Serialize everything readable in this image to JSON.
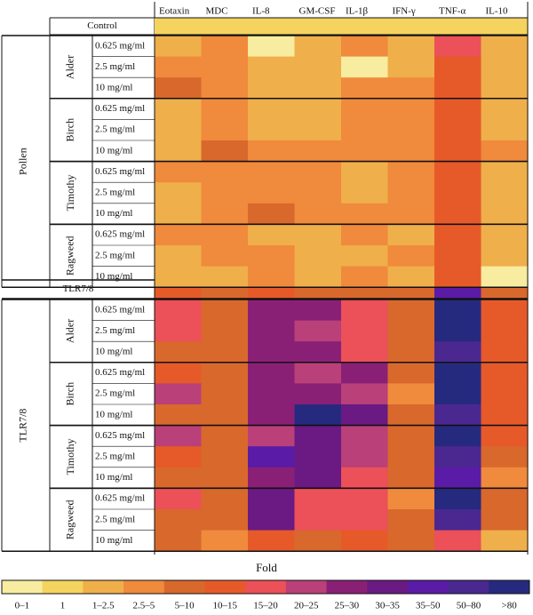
{
  "chart_data": {
    "type": "heatmap",
    "columns": [
      "Eotaxin",
      "MDC",
      "IL-8",
      "GM-CSF",
      "IL-1β",
      "IFN-γ",
      "TNF-α",
      "IL-10"
    ],
    "control_label": "Control",
    "control_values": [
      1,
      1,
      1,
      1,
      1,
      1,
      1,
      1
    ],
    "blocks": [
      {
        "name": "Pollen",
        "groups": [
          {
            "name": "Alder",
            "rows": [
              {
                "label": "0.625 mg/ml",
                "values": [
                  2,
                  3,
                  0,
                  2,
                  3,
                  2,
                  6,
                  2
                ]
              },
              {
                "label": "2.5 mg/ml",
                "values": [
                  3,
                  3,
                  2,
                  2,
                  0,
                  2,
                  5,
                  2
                ]
              },
              {
                "label": "10 mg/ml",
                "values": [
                  4,
                  3,
                  2,
                  2,
                  3,
                  3,
                  5,
                  2
                ]
              }
            ]
          },
          {
            "name": "Birch",
            "rows": [
              {
                "label": "0.625 mg/ml",
                "values": [
                  2,
                  3,
                  2,
                  2,
                  3,
                  3,
                  5,
                  2
                ]
              },
              {
                "label": "2.5 mg/ml",
                "values": [
                  2,
                  3,
                  2,
                  2,
                  3,
                  3,
                  5,
                  2
                ]
              },
              {
                "label": "10 mg/ml",
                "values": [
                  2,
                  4,
                  3,
                  3,
                  3,
                  3,
                  5,
                  3
                ]
              }
            ]
          },
          {
            "name": "Timothy",
            "rows": [
              {
                "label": "0.625 mg/ml",
                "values": [
                  3,
                  3,
                  3,
                  3,
                  2,
                  3,
                  5,
                  2
                ]
              },
              {
                "label": "2.5 mg/ml",
                "values": [
                  2,
                  3,
                  3,
                  3,
                  2,
                  3,
                  5,
                  2
                ]
              },
              {
                "label": "10 mg/ml",
                "values": [
                  2,
                  3,
                  4,
                  3,
                  3,
                  3,
                  5,
                  2
                ]
              }
            ]
          },
          {
            "name": "Ragweed",
            "rows": [
              {
                "label": "0.625 mg/ml",
                "values": [
                  3,
                  3,
                  2,
                  2,
                  3,
                  2,
                  5,
                  2
                ]
              },
              {
                "label": "2.5 mg/ml",
                "values": [
                  2,
                  3,
                  3,
                  2,
                  2,
                  3,
                  5,
                  2
                ]
              },
              {
                "label": "10 mg/ml",
                "values": [
                  2,
                  2,
                  3,
                  2,
                  3,
                  2,
                  5,
                  0
                ]
              }
            ]
          }
        ]
      },
      {
        "name": "TLR7/8",
        "groups": [
          {
            "name": "Alder",
            "rows": [
              {
                "label": "0.625 mg/ml",
                "values": [
                  6,
                  4,
                  8,
                  8,
                  6,
                  4,
                  12,
                  5
                ]
              },
              {
                "label": "2.5 mg/ml",
                "values": [
                  6,
                  4,
                  8,
                  7,
                  6,
                  4,
                  12,
                  5
                ]
              },
              {
                "label": "10 mg/ml",
                "values": [
                  4,
                  4,
                  8,
                  8,
                  6,
                  4,
                  11,
                  5
                ]
              }
            ]
          },
          {
            "name": "Birch",
            "rows": [
              {
                "label": "0.625 mg/ml",
                "values": [
                  5,
                  4,
                  8,
                  7,
                  8,
                  4,
                  12,
                  5
                ]
              },
              {
                "label": "2.5 mg/ml",
                "values": [
                  7,
                  4,
                  8,
                  8,
                  7,
                  3,
                  12,
                  5
                ]
              },
              {
                "label": "10 mg/ml",
                "values": [
                  4,
                  4,
                  8,
                  12,
                  9,
                  4,
                  11,
                  5
                ]
              }
            ]
          },
          {
            "name": "Timothy",
            "rows": [
              {
                "label": "0.625 mg/ml",
                "values": [
                  7,
                  4,
                  7,
                  9,
                  7,
                  4,
                  12,
                  5
                ]
              },
              {
                "label": "2.5 mg/ml",
                "values": [
                  5,
                  4,
                  10,
                  9,
                  7,
                  4,
                  11,
                  4
                ]
              },
              {
                "label": "10 mg/ml",
                "values": [
                  4,
                  4,
                  8,
                  9,
                  6,
                  4,
                  10,
                  3
                ]
              }
            ]
          },
          {
            "name": "Ragweed",
            "rows": [
              {
                "label": "0.625 mg/ml",
                "values": [
                  6,
                  4,
                  9,
                  6,
                  6,
                  3,
                  12,
                  4
                ]
              },
              {
                "label": "2.5 mg/ml",
                "values": [
                  4,
                  4,
                  9,
                  6,
                  6,
                  4,
                  11,
                  4
                ]
              },
              {
                "label": "10 mg/ml",
                "values": [
                  4,
                  3,
                  5,
                  4,
                  5,
                  4,
                  6,
                  2
                ]
              }
            ]
          }
        ]
      }
    ],
    "separator": {
      "label": "TLR7/8",
      "values": [
        5,
        4,
        5,
        4,
        4,
        4,
        10,
        4
      ]
    },
    "legend": {
      "title": "Fold",
      "bins": [
        "0–1",
        "1",
        "1–2.5",
        "2.5–5",
        "5–10",
        "10–15",
        "15–20",
        "20–25",
        "25–30",
        "30–35",
        "35–50",
        "50–80",
        ">80"
      ],
      "colors": [
        "#f8eca0",
        "#f4d35e",
        "#efaf4a",
        "#f08a3c",
        "#d9682c",
        "#e65a2a",
        "#ec5058",
        "#b94078",
        "#8a2076",
        "#6a1a82",
        "#5a1ba6",
        "#4a2890",
        "#262a7e"
      ]
    }
  }
}
